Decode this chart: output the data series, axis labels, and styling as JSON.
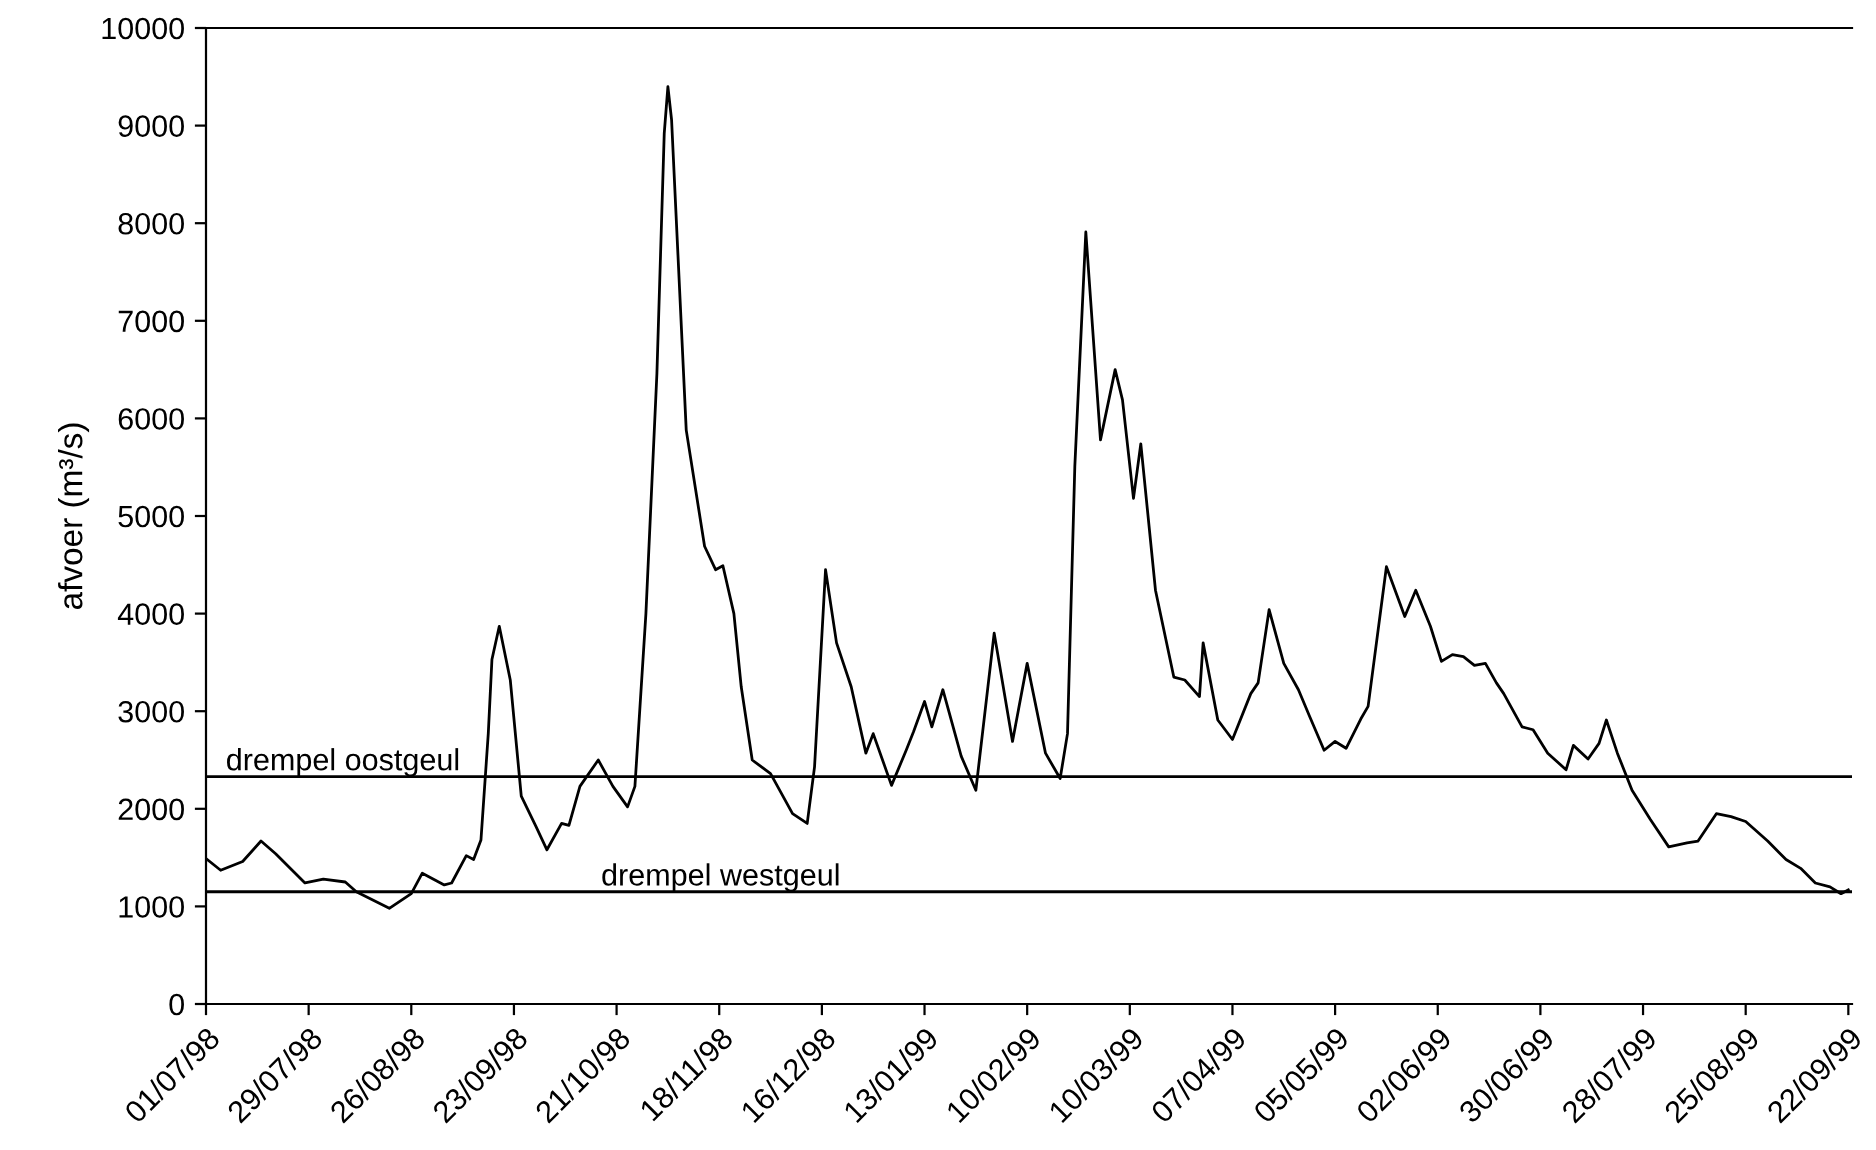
{
  "chart_data": {
    "type": "line",
    "ylabel": "afvoer (m³/s)",
    "x": [
      "1998-07-01",
      "1998-07-05",
      "1998-07-11",
      "1998-07-16",
      "1998-07-20",
      "1998-07-28",
      "1998-08-02",
      "1998-08-08",
      "1998-08-11",
      "1998-08-20",
      "1998-08-26",
      "1998-08-29",
      "1998-09-04",
      "1998-09-06",
      "1998-09-10",
      "1998-09-12",
      "1998-09-14",
      "1998-09-16",
      "1998-09-17",
      "1998-09-19",
      "1998-09-22",
      "1998-09-25",
      "1998-09-29",
      "1998-10-02",
      "1998-10-06",
      "1998-10-08",
      "1998-10-11",
      "1998-10-16",
      "1998-10-20",
      "1998-10-24",
      "1998-10-26",
      "1998-10-29",
      "1998-11-01",
      "1998-11-03",
      "1998-11-04",
      "1998-11-05",
      "1998-11-09",
      "1998-11-14",
      "1998-11-17",
      "1998-11-19",
      "1998-11-22",
      "1998-11-24",
      "1998-11-27",
      "1998-12-02",
      "1998-12-08",
      "1998-12-12",
      "1998-12-14",
      "1998-12-17",
      "1998-12-20",
      "1998-12-24",
      "1998-12-28",
      "1998-12-30",
      "1999-01-04",
      "1999-01-08",
      "1999-01-10",
      "1999-01-13",
      "1999-01-15",
      "1999-01-18",
      "1999-01-23",
      "1999-01-27",
      "1999-02-01",
      "1999-02-06",
      "1999-02-10",
      "1999-02-15",
      "1999-02-19",
      "1999-02-21",
      "1999-02-23",
      "1999-02-26",
      "1999-03-02",
      "1999-03-06",
      "1999-03-08",
      "1999-03-11",
      "1999-03-13",
      "1999-03-17",
      "1999-03-22",
      "1999-03-25",
      "1999-03-29",
      "1999-03-30",
      "1999-04-03",
      "1999-04-07",
      "1999-04-12",
      "1999-04-14",
      "1999-04-17",
      "1999-04-21",
      "1999-04-25",
      "1999-04-28",
      "1999-05-02",
      "1999-05-05",
      "1999-05-08",
      "1999-05-12",
      "1999-05-14",
      "1999-05-19",
      "1999-05-24",
      "1999-05-27",
      "1999-05-31",
      "1999-06-03",
      "1999-06-06",
      "1999-06-09",
      "1999-06-12",
      "1999-06-15",
      "1999-06-18",
      "1999-06-20",
      "1999-06-25",
      "1999-06-28",
      "1999-07-02",
      "1999-07-07",
      "1999-07-09",
      "1999-07-13",
      "1999-07-16",
      "1999-07-18",
      "1999-07-21",
      "1999-07-25",
      "1999-07-30",
      "1999-08-04",
      "1999-08-09",
      "1999-08-12",
      "1999-08-17",
      "1999-08-21",
      "1999-08-25",
      "1999-08-31",
      "1999-09-05",
      "1999-09-09",
      "1999-09-13",
      "1999-09-17",
      "1999-09-20",
      "1999-09-22"
    ],
    "series": [
      {
        "color": "#000000",
        "values": [
          1490,
          1370,
          1460,
          1670,
          1540,
          1240,
          1280,
          1250,
          1150,
          980,
          1130,
          1340,
          1220,
          1240,
          1520,
          1480,
          1680,
          2770,
          3530,
          3870,
          3320,
          2130,
          1820,
          1580,
          1850,
          1830,
          2230,
          2500,
          2230,
          2020,
          2230,
          4000,
          6460,
          8920,
          9400,
          9060,
          5880,
          4690,
          4450,
          4490,
          4000,
          3250,
          2500,
          2360,
          1950,
          1850,
          2430,
          4450,
          3700,
          3250,
          2570,
          2770,
          2240,
          2600,
          2790,
          3100,
          2840,
          3220,
          2540,
          2190,
          3800,
          2690,
          3490,
          2570,
          2310,
          2770,
          5510,
          7910,
          5780,
          6500,
          6190,
          5180,
          5740,
          4240,
          3350,
          3320,
          3150,
          3700,
          2910,
          2710,
          3180,
          3290,
          4040,
          3490,
          3220,
          2950,
          2600,
          2690,
          2620,
          2920,
          3050,
          4480,
          3970,
          4240,
          3870,
          3510,
          3580,
          3560,
          3470,
          3490,
          3290,
          3180,
          2840,
          2810,
          2570,
          2400,
          2650,
          2510,
          2670,
          2910,
          2570,
          2190,
          1890,
          1610,
          1650,
          1670,
          1950,
          1920,
          1870,
          1670,
          1480,
          1390,
          1240,
          1200,
          1130,
          1170
        ]
      }
    ],
    "xlim": [
      "1998-07-01",
      "1999-09-23"
    ],
    "xticks": [
      {
        "value": "1998-07-01",
        "label": "01/07/98"
      },
      {
        "value": "1998-07-29",
        "label": "29/07/98"
      },
      {
        "value": "1998-08-26",
        "label": "26/08/98"
      },
      {
        "value": "1998-09-23",
        "label": "23/09/98"
      },
      {
        "value": "1998-10-21",
        "label": "21/10/98"
      },
      {
        "value": "1998-11-18",
        "label": "18/11/98"
      },
      {
        "value": "1998-12-16",
        "label": "16/12/98"
      },
      {
        "value": "1999-01-13",
        "label": "13/01/99"
      },
      {
        "value": "1999-02-10",
        "label": "10/02/99"
      },
      {
        "value": "1999-03-10",
        "label": "10/03/99"
      },
      {
        "value": "1999-04-07",
        "label": "07/04/99"
      },
      {
        "value": "1999-05-05",
        "label": "05/05/99"
      },
      {
        "value": "1999-06-02",
        "label": "02/06/99"
      },
      {
        "value": "1999-06-30",
        "label": "30/06/99"
      },
      {
        "value": "1999-07-28",
        "label": "28/07/99"
      },
      {
        "value": "1999-08-25",
        "label": "25/08/99"
      },
      {
        "value": "1999-09-22",
        "label": "22/09/99"
      }
    ],
    "ylim": [
      0,
      10000
    ],
    "yticks": [
      0,
      1000,
      2000,
      3000,
      4000,
      5000,
      6000,
      7000,
      8000,
      9000,
      10000
    ],
    "ref_lines": [
      {
        "axis": "y",
        "value": 2330,
        "label": "drempel oostgeul",
        "color": "#000000"
      },
      {
        "axis": "y",
        "value": 1150,
        "label": "drempel westgeul",
        "color": "#000000"
      }
    ],
    "grid": false,
    "legend": false,
    "marker": "none",
    "line_style": "solid"
  }
}
